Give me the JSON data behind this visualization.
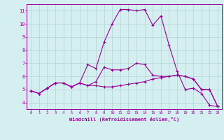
{
  "xlabel": "Windchill (Refroidissement éolien,°C)",
  "x": [
    0,
    1,
    2,
    3,
    4,
    5,
    6,
    7,
    8,
    9,
    10,
    11,
    12,
    13,
    14,
    15,
    16,
    17,
    18,
    19,
    20,
    21,
    22,
    23
  ],
  "line1": [
    4.9,
    4.7,
    5.1,
    5.5,
    5.5,
    5.2,
    5.5,
    5.3,
    5.3,
    5.2,
    5.2,
    5.3,
    5.4,
    5.5,
    5.6,
    5.8,
    5.9,
    6.0,
    6.1,
    6.0,
    5.8,
    5.0,
    5.0,
    3.7
  ],
  "line2": [
    4.9,
    4.7,
    5.1,
    5.5,
    5.5,
    5.2,
    5.5,
    6.9,
    6.6,
    8.6,
    10.0,
    11.1,
    11.1,
    11.0,
    11.1,
    9.9,
    10.6,
    8.4,
    6.4,
    5.0,
    5.1,
    4.7,
    3.8,
    3.7
  ],
  "line3": [
    4.9,
    4.7,
    5.1,
    5.5,
    5.5,
    5.2,
    5.5,
    5.3,
    5.6,
    6.7,
    6.5,
    6.5,
    6.6,
    7.0,
    6.9,
    6.1,
    6.0,
    6.0,
    6.1,
    6.0,
    5.8,
    5.0,
    5.0,
    3.7
  ],
  "line_color": "#990099",
  "bg_color": "#d5eef0",
  "grid_color": "#b8d8dc",
  "ylim": [
    3.5,
    11.5
  ],
  "xlim": [
    -0.5,
    23.5
  ],
  "yticks": [
    4,
    5,
    6,
    7,
    8,
    9,
    10,
    11
  ],
  "xticks": [
    0,
    1,
    2,
    3,
    4,
    5,
    6,
    7,
    8,
    9,
    10,
    11,
    12,
    13,
    14,
    15,
    16,
    17,
    18,
    19,
    20,
    21,
    22,
    23
  ]
}
